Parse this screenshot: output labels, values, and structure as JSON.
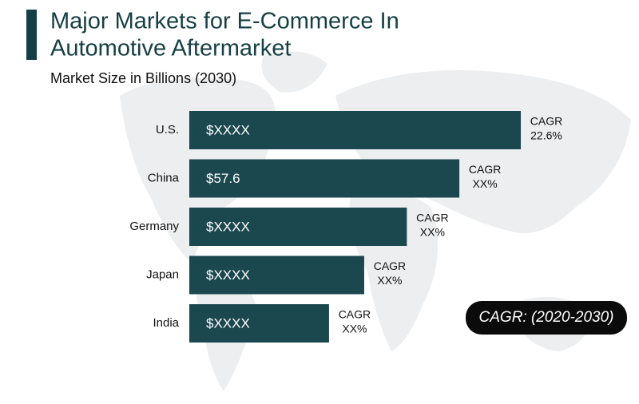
{
  "chart_data": {
    "type": "bar",
    "orientation": "horizontal",
    "title_lines": [
      "Major Markets for E-Commerce In",
      "Automotive Aftermarket"
    ],
    "subtitle": "Market Size in Billions (2030)",
    "categories": [
      "U.S.",
      "China",
      "Germany",
      "Japan",
      "India"
    ],
    "values": [
      70.7,
      57.6,
      46.4,
      37.3,
      29.8
    ],
    "value_labels": [
      "$XXXX",
      "$57.6",
      "$XXXX",
      "$XXXX",
      "$XXXX"
    ],
    "color": "#1b474f",
    "cagr_heading": "CAGR",
    "cagr_labels": [
      "22.6%",
      "XX%",
      "XX%",
      "XX%",
      "XX%"
    ],
    "badge": "CAGR: (2020-2030)"
  }
}
